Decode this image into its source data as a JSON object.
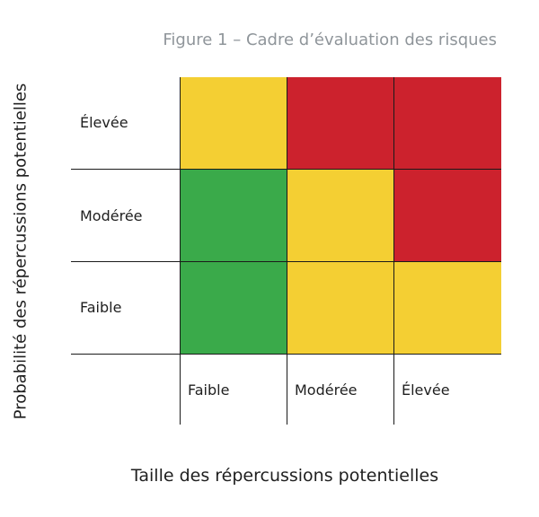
{
  "figure": {
    "caption": "Figure 1 – Cadre d’évaluation des risques",
    "y_axis_title": "Probabilité des répercussions potentielles",
    "x_axis_title": "Taille des répercussions potentielles"
  },
  "rows": [
    {
      "label": "Élevée"
    },
    {
      "label": "Modérée"
    },
    {
      "label": "Faible"
    }
  ],
  "columns": [
    {
      "label": "Faible"
    },
    {
      "label": "Modérée"
    },
    {
      "label": "Élevée"
    }
  ],
  "matrix": [
    [
      "yellow",
      "red",
      "red"
    ],
    [
      "green",
      "yellow",
      "red"
    ],
    [
      "green",
      "yellow",
      "yellow"
    ]
  ],
  "colors": {
    "green": "#3aaa4a",
    "yellow": "#f4cf33",
    "red": "#cc222d"
  }
}
